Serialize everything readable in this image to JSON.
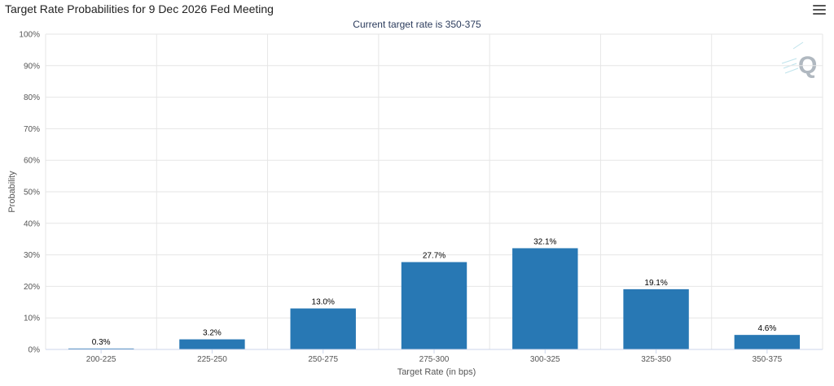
{
  "header": {
    "title": "Target Rate Probabilities for 9 Dec 2026 Fed Meeting",
    "subtitle": "Current target rate is 350-375"
  },
  "menu": {
    "icon": "hamburger-menu-icon"
  },
  "watermark": {
    "icon": "quikstrike-logo-icon",
    "text": "Q"
  },
  "colors": {
    "bar": "#2878b4",
    "grid": "#e6e6e6",
    "axis": "#ccd6eb"
  },
  "chart_data": {
    "type": "bar",
    "categories": [
      "200-225",
      "225-250",
      "250-275",
      "275-300",
      "300-325",
      "325-350",
      "350-375"
    ],
    "values": [
      0.3,
      3.2,
      13.0,
      27.7,
      32.1,
      19.1,
      4.6
    ],
    "data_labels": [
      "0.3%",
      "3.2%",
      "13.0%",
      "27.7%",
      "32.1%",
      "19.1%",
      "4.6%"
    ],
    "xlabel": "Target Rate (in bps)",
    "ylabel": "Probability",
    "ylim": [
      0,
      100
    ],
    "yticks": [
      0,
      10,
      20,
      30,
      40,
      50,
      60,
      70,
      80,
      90,
      100
    ],
    "ytick_labels": [
      "0%",
      "10%",
      "20%",
      "30%",
      "40%",
      "50%",
      "60%",
      "70%",
      "80%",
      "90%",
      "100%"
    ],
    "grid": true,
    "legend": false
  }
}
